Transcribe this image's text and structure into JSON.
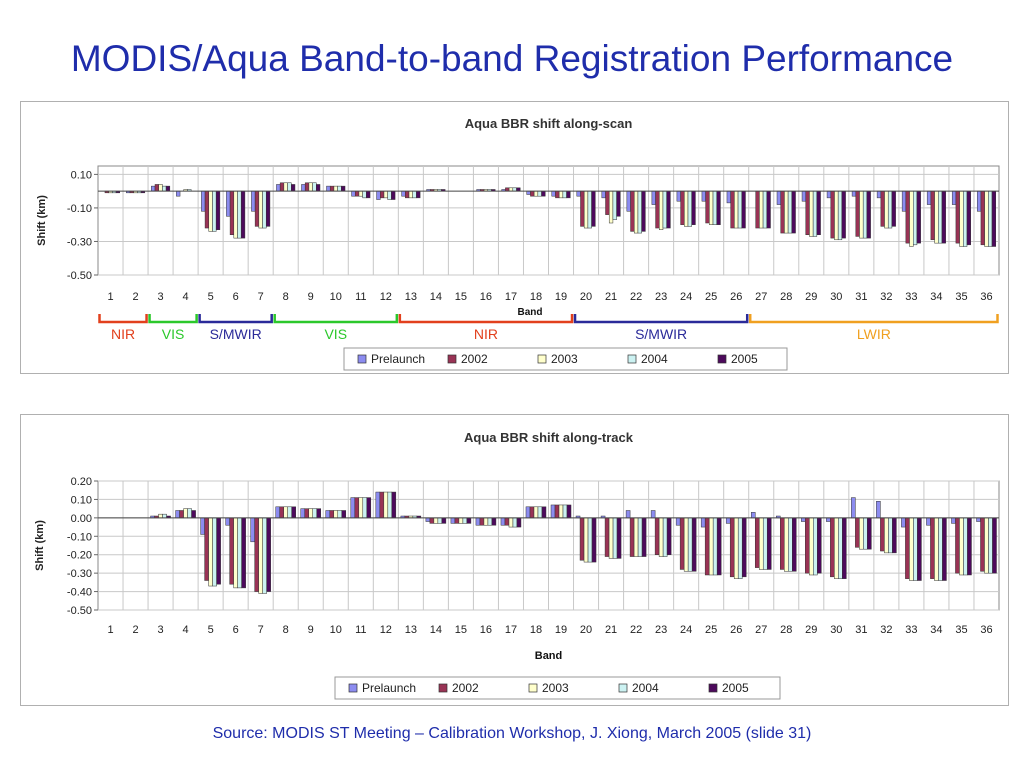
{
  "slide": {
    "title": "MODIS/Aqua Band-to-band Registration Performance",
    "source": "Source: MODIS ST Meeting – Calibration Workshop, J. Xiong, March 2005 (slide 31)"
  },
  "colors": {
    "title": "#1f2dab",
    "series": [
      "#8c8cf0",
      "#993355",
      "#ffffcc",
      "#ccf2f2",
      "#4d0a5c"
    ],
    "group_nir": "#e2401d",
    "group_vis": "#2bc82b",
    "group_mwir": "#2a2a99",
    "group_lwir": "#f0a020"
  },
  "chart_data": [
    {
      "type": "bar",
      "title": "Aqua BBR shift along-scan",
      "ylabel": "Shift (km)",
      "xlabel": "Band",
      "ylim": [
        -0.5,
        0.15
      ],
      "y_ticks": [
        "0.10",
        "-0.10",
        "-0.30",
        "-0.50"
      ],
      "y_tick_values": [
        0.1,
        -0.1,
        -0.3,
        -0.5
      ],
      "categories": [
        "1",
        "2",
        "3",
        "4",
        "5",
        "6",
        "7",
        "8",
        "9",
        "10",
        "11",
        "12",
        "13",
        "14",
        "15",
        "16",
        "17",
        "18",
        "19",
        "20",
        "21",
        "22",
        "23",
        "24",
        "25",
        "26",
        "27",
        "28",
        "29",
        "30",
        "31",
        "32",
        "33",
        "34",
        "35",
        "36"
      ],
      "series": [
        {
          "name": "Prelaunch",
          "values": [
            0,
            -0.01,
            0.03,
            -0.03,
            -0.12,
            -0.15,
            -0.12,
            0.04,
            0.04,
            0.03,
            -0.03,
            -0.05,
            -0.03,
            0.01,
            0,
            0.01,
            0.01,
            -0.02,
            -0.03,
            -0.03,
            -0.04,
            -0.12,
            -0.08,
            -0.06,
            -0.06,
            -0.07,
            0,
            -0.08,
            -0.06,
            -0.04,
            -0.03,
            -0.04,
            -0.12,
            -0.08,
            -0.08,
            -0.12
          ]
        },
        {
          "name": "2002",
          "values": [
            -0.01,
            -0.01,
            0.04,
            0,
            -0.22,
            -0.26,
            -0.21,
            0.05,
            0.05,
            0.03,
            -0.03,
            -0.04,
            -0.04,
            0.01,
            0,
            0.01,
            0.02,
            -0.03,
            -0.04,
            -0.21,
            -0.14,
            -0.24,
            -0.22,
            -0.2,
            -0.19,
            -0.22,
            -0.22,
            -0.25,
            -0.26,
            -0.28,
            -0.27,
            -0.21,
            -0.31,
            -0.29,
            -0.31,
            -0.32
          ]
        },
        {
          "name": "2003",
          "values": [
            -0.01,
            -0.01,
            0.04,
            0.01,
            -0.24,
            -0.28,
            -0.22,
            0.05,
            0.05,
            0.03,
            -0.03,
            -0.04,
            -0.04,
            0.01,
            0,
            0.01,
            0.02,
            -0.03,
            -0.04,
            -0.22,
            -0.19,
            -0.25,
            -0.23,
            -0.21,
            -0.2,
            -0.22,
            -0.22,
            -0.25,
            -0.27,
            -0.29,
            -0.28,
            -0.22,
            -0.33,
            -0.31,
            -0.33,
            -0.33
          ]
        },
        {
          "name": "2004",
          "values": [
            -0.01,
            -0.01,
            0.03,
            0.01,
            -0.24,
            -0.28,
            -0.22,
            0.05,
            0.05,
            0.03,
            -0.04,
            -0.05,
            -0.04,
            0.01,
            0,
            0.01,
            0.02,
            -0.03,
            -0.04,
            -0.22,
            -0.17,
            -0.25,
            -0.22,
            -0.21,
            -0.2,
            -0.22,
            -0.22,
            -0.25,
            -0.27,
            -0.29,
            -0.28,
            -0.22,
            -0.32,
            -0.31,
            -0.33,
            -0.33
          ]
        },
        {
          "name": "2005",
          "values": [
            -0.01,
            -0.01,
            0.03,
            0,
            -0.23,
            -0.28,
            -0.21,
            0.04,
            0.04,
            0.03,
            -0.04,
            -0.05,
            -0.04,
            0.01,
            0,
            0.01,
            0.02,
            -0.03,
            -0.04,
            -0.21,
            -0.15,
            -0.24,
            -0.22,
            -0.2,
            -0.2,
            -0.22,
            -0.22,
            -0.25,
            -0.26,
            -0.28,
            -0.28,
            -0.21,
            -0.31,
            -0.31,
            -0.32,
            -0.33
          ]
        }
      ],
      "band_groups": [
        {
          "label": "NIR",
          "from": 1,
          "to": 2,
          "color_key": "group_nir"
        },
        {
          "label": "VIS",
          "from": 3,
          "to": 4,
          "color_key": "group_vis"
        },
        {
          "label": "S/MWIR",
          "from": 5,
          "to": 7,
          "color_key": "group_mwir"
        },
        {
          "label": "VIS",
          "from": 8,
          "to": 12,
          "color_key": "group_vis"
        },
        {
          "label": "NIR",
          "from": 13,
          "to": 19,
          "color_key": "group_nir"
        },
        {
          "label": "S/MWIR",
          "from": 20,
          "to": 26,
          "color_key": "group_mwir"
        },
        {
          "label": "LWIR",
          "from": 27,
          "to": 36,
          "color_key": "group_lwir"
        }
      ],
      "grid": true,
      "legend": "bottom"
    },
    {
      "type": "bar",
      "title": "Aqua BBR shift along-track",
      "ylabel": "Shift (km)",
      "xlabel": "Band",
      "ylim": [
        -0.5,
        0.2
      ],
      "y_ticks": [
        "0.20",
        "0.10",
        "0.00",
        "-0.10",
        "-0.20",
        "-0.30",
        "-0.40",
        "-0.50"
      ],
      "y_tick_values": [
        0.2,
        0.1,
        0,
        -0.1,
        -0.2,
        -0.3,
        -0.4,
        -0.5
      ],
      "categories": [
        "1",
        "2",
        "3",
        "4",
        "5",
        "6",
        "7",
        "8",
        "9",
        "10",
        "11",
        "12",
        "13",
        "14",
        "15",
        "16",
        "17",
        "18",
        "19",
        "20",
        "21",
        "22",
        "23",
        "24",
        "25",
        "26",
        "27",
        "28",
        "29",
        "30",
        "31",
        "32",
        "33",
        "34",
        "35",
        "36"
      ],
      "series": [
        {
          "name": "Prelaunch",
          "values": [
            0,
            0,
            0.01,
            0.04,
            -0.09,
            -0.04,
            -0.13,
            0.06,
            0.05,
            0.04,
            0.11,
            0.14,
            0.01,
            -0.02,
            -0.03,
            -0.04,
            -0.04,
            0.06,
            0.07,
            0.01,
            0.01,
            0.04,
            0.04,
            -0.04,
            -0.05,
            -0.03,
            0.03,
            0.01,
            -0.02,
            -0.02,
            0.11,
            0.09,
            -0.05,
            -0.04,
            -0.03,
            -0.02
          ]
        },
        {
          "name": "2002",
          "values": [
            0,
            0,
            0.01,
            0.04,
            -0.34,
            -0.36,
            -0.4,
            0.06,
            0.05,
            0.04,
            0.11,
            0.14,
            0.01,
            -0.03,
            -0.03,
            -0.04,
            -0.04,
            0.06,
            0.07,
            -0.23,
            -0.21,
            -0.21,
            -0.2,
            -0.28,
            -0.31,
            -0.32,
            -0.27,
            -0.28,
            -0.3,
            -0.32,
            -0.16,
            -0.18,
            -0.33,
            -0.33,
            -0.3,
            -0.29
          ]
        },
        {
          "name": "2003",
          "values": [
            0,
            0,
            0.02,
            0.05,
            -0.37,
            -0.38,
            -0.41,
            0.06,
            0.05,
            0.04,
            0.11,
            0.14,
            0.01,
            -0.03,
            -0.03,
            -0.04,
            -0.05,
            0.06,
            0.07,
            -0.24,
            -0.22,
            -0.21,
            -0.21,
            -0.29,
            -0.31,
            -0.33,
            -0.28,
            -0.29,
            -0.31,
            -0.33,
            -0.17,
            -0.19,
            -0.34,
            -0.34,
            -0.31,
            -0.3
          ]
        },
        {
          "name": "2004",
          "values": [
            0,
            0,
            0.02,
            0.05,
            -0.37,
            -0.38,
            -0.41,
            0.06,
            0.05,
            0.04,
            0.11,
            0.14,
            0.01,
            -0.03,
            -0.03,
            -0.04,
            -0.05,
            0.06,
            0.07,
            -0.24,
            -0.22,
            -0.21,
            -0.21,
            -0.29,
            -0.31,
            -0.33,
            -0.28,
            -0.29,
            -0.31,
            -0.33,
            -0.17,
            -0.19,
            -0.34,
            -0.34,
            -0.31,
            -0.3
          ]
        },
        {
          "name": "2005",
          "values": [
            0,
            0,
            0.01,
            0.04,
            -0.36,
            -0.38,
            -0.4,
            0.06,
            0.05,
            0.04,
            0.11,
            0.14,
            0.01,
            -0.03,
            -0.03,
            -0.04,
            -0.05,
            0.06,
            0.07,
            -0.24,
            -0.22,
            -0.21,
            -0.2,
            -0.29,
            -0.31,
            -0.32,
            -0.28,
            -0.29,
            -0.3,
            -0.33,
            -0.17,
            -0.19,
            -0.34,
            -0.34,
            -0.31,
            -0.3
          ]
        }
      ],
      "grid": true,
      "legend": "bottom"
    }
  ]
}
